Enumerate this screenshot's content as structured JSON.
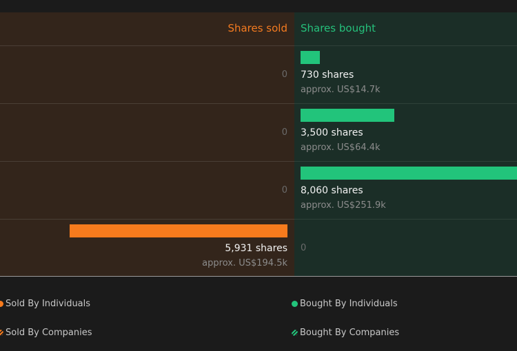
{
  "colors": {
    "sold": "#f77b1d",
    "bought": "#22c47b"
  },
  "headers": {
    "sold": "Shares sold",
    "bought": "Shares bought"
  },
  "chart_data": {
    "type": "bar",
    "orientation": "horizontal-diverging",
    "x_max_shares": 8060,
    "rows": [
      {
        "sold_shares": 0,
        "sold_label": "0",
        "sold_approx": "",
        "bought_shares": 730,
        "bought_label": "730 shares",
        "bought_approx": "approx. US$14.7k"
      },
      {
        "sold_shares": 0,
        "sold_label": "0",
        "sold_approx": "",
        "bought_shares": 3500,
        "bought_label": "3,500 shares",
        "bought_approx": "approx. US$64.4k"
      },
      {
        "sold_shares": 0,
        "sold_label": "0",
        "sold_approx": "",
        "bought_shares": 8060,
        "bought_label": "8,060 shares",
        "bought_approx": "approx. US$251.9k"
      },
      {
        "sold_shares": 5931,
        "sold_label": "5,931 shares",
        "sold_approx": "approx. US$194.5k",
        "bought_shares": 0,
        "bought_label": "0",
        "bought_approx": ""
      }
    ],
    "legend": [
      {
        "label": "Sold By Individuals",
        "marker": "circle",
        "color": "#f77b1d",
        "side": "left",
        "line": 1
      },
      {
        "label": "Sold By Companies",
        "marker": "hatched-circle",
        "color": "#f77b1d",
        "side": "left",
        "line": 2
      },
      {
        "label": "Bought By Individuals",
        "marker": "circle",
        "color": "#22c47b",
        "side": "right",
        "line": 1
      },
      {
        "label": "Bought By Companies",
        "marker": "hatched-circle",
        "color": "#22c47b",
        "side": "right",
        "line": 2
      }
    ]
  }
}
